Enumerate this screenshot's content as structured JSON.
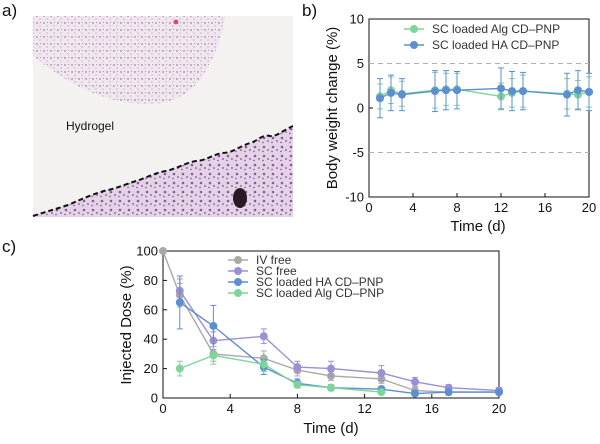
{
  "panels": {
    "a": "a)",
    "b": "b)",
    "c": "c)"
  },
  "micrograph": {
    "label": "Hydrogel"
  },
  "chart_data": [
    {
      "id": "b",
      "type": "scatter",
      "xlabel": "Time (d)",
      "ylabel": "Body weight change (%)",
      "xlim": [
        0,
        20
      ],
      "ylim": [
        -10,
        10
      ],
      "xticks": [
        0,
        4,
        8,
        12,
        16,
        20
      ],
      "yticks": [
        -10,
        -5,
        0,
        5,
        10
      ],
      "reference_lines": [
        5,
        -5
      ],
      "legend_position": "top-right",
      "series": [
        {
          "name": "SC loaded Alg CD–PNP",
          "color": "#7ed59a",
          "x": [
            1,
            2,
            3,
            6,
            7,
            8,
            12,
            13,
            14,
            18,
            19,
            20
          ],
          "y": [
            1.3,
            2.0,
            1.6,
            2.0,
            2.1,
            2.1,
            1.3,
            1.7,
            1.9,
            1.6,
            1.5,
            1.8
          ],
          "err": [
            1.4,
            1.5,
            1.4,
            2.0,
            1.8,
            1.8,
            1.5,
            1.6,
            1.8,
            1.7,
            1.6,
            1.7
          ]
        },
        {
          "name": "SC loaded HA CD–PNP",
          "color": "#5b8fd1",
          "x": [
            1,
            2,
            3,
            6,
            7,
            8,
            12,
            13,
            14,
            18,
            19,
            20
          ],
          "y": [
            1.1,
            1.7,
            1.5,
            1.9,
            2.0,
            2.0,
            2.2,
            1.9,
            1.9,
            1.5,
            2.0,
            1.8
          ],
          "err": [
            2.2,
            2.0,
            1.8,
            2.3,
            2.2,
            2.1,
            2.3,
            2.2,
            2.1,
            2.4,
            2.2,
            2.1
          ]
        }
      ]
    },
    {
      "id": "c",
      "type": "line",
      "xlabel": "Time (d)",
      "ylabel": "Injected Dose (%)",
      "xlim": [
        0,
        20
      ],
      "ylim": [
        0,
        100
      ],
      "xticks": [
        0,
        4,
        8,
        12,
        16,
        20
      ],
      "yticks": [
        0,
        20,
        40,
        60,
        80,
        100
      ],
      "legend_position": "top-center",
      "series": [
        {
          "name": "IV   free",
          "color": "#a9a9a9",
          "x": [
            0,
            1,
            3,
            6,
            8,
            10,
            13,
            15,
            17,
            20
          ],
          "y": [
            100,
            70,
            30,
            27,
            19,
            15,
            13,
            5,
            4,
            4
          ],
          "err": [
            0,
            8,
            5,
            5,
            4,
            3,
            3,
            2,
            2,
            1
          ]
        },
        {
          "name": "SC free",
          "color": "#9b8fd6",
          "x": [
            1,
            3,
            6,
            8,
            10,
            13,
            15,
            17,
            20
          ],
          "y": [
            73,
            39,
            42,
            21,
            20,
            17,
            11,
            7,
            5
          ],
          "err": [
            8,
            6,
            5,
            4,
            5,
            5,
            3,
            2,
            2
          ]
        },
        {
          "name": "SC loaded HA CD–PNP",
          "color": "#5b8fd1",
          "x": [
            1,
            3,
            6,
            8,
            10,
            13,
            15,
            17,
            20
          ],
          "y": [
            65,
            49,
            21,
            10,
            7,
            6,
            3,
            4,
            4
          ],
          "err": [
            18,
            14,
            5,
            3,
            2,
            2,
            1,
            1,
            1
          ]
        },
        {
          "name": "SC loaded Alg CD–PNP",
          "color": "#7ed59a",
          "x": [
            1,
            3,
            6,
            8,
            10,
            13
          ],
          "y": [
            20,
            29,
            23,
            9,
            7,
            4
          ],
          "err": [
            5,
            6,
            5,
            2,
            2,
            1
          ]
        }
      ]
    }
  ]
}
